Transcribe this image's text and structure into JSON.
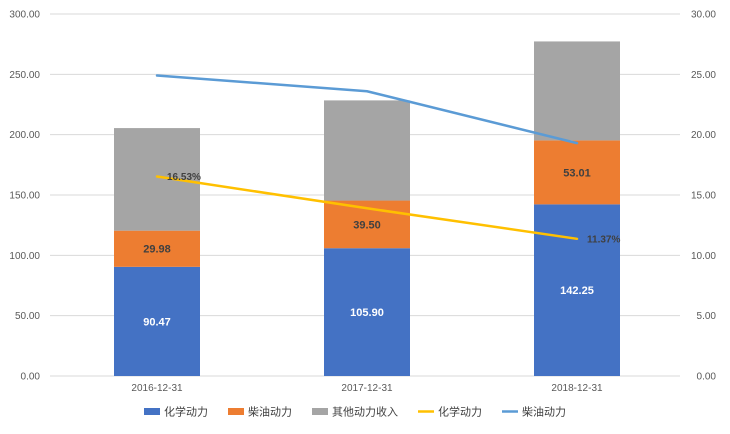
{
  "chart_data": {
    "type": "bar",
    "stacked": true,
    "categories": [
      "2016-12-31",
      "2017-12-31",
      "2018-12-31"
    ],
    "series": [
      {
        "name": "化学动力",
        "chart": "bar",
        "axis": "left",
        "color": "#4472C4",
        "values": [
          90.47,
          105.9,
          142.25
        ],
        "labels": [
          "90.47",
          "105.90",
          "142.25"
        ],
        "label_color": "#ffffff"
      },
      {
        "name": "柴油动力",
        "chart": "bar",
        "axis": "left",
        "color": "#ED7D31",
        "values": [
          29.98,
          39.5,
          53.01
        ],
        "labels": [
          "29.98",
          "39.50",
          "53.01"
        ],
        "label_color": "#404040"
      },
      {
        "name": "其他动力收入",
        "chart": "bar",
        "axis": "left",
        "color": "#A5A5A5",
        "values": [
          85.0,
          83.0,
          82.0
        ],
        "labels": [
          "",
          "",
          ""
        ]
      },
      {
        "name": "化学动力",
        "chart": "line",
        "axis": "right",
        "color": "#FFC000",
        "values": [
          16.53,
          13.9,
          11.37
        ],
        "labels": [
          "16.53%",
          "",
          "11.37%"
        ]
      },
      {
        "name": "柴油动力",
        "chart": "line",
        "axis": "right",
        "color": "#5B9BD5",
        "values": [
          24.9,
          23.6,
          19.3
        ],
        "labels": [
          "",
          "",
          ""
        ]
      }
    ],
    "y_left": {
      "min": 0,
      "max": 300,
      "step": 50,
      "tick_labels": [
        "0.00",
        "50.00",
        "100.00",
        "150.00",
        "200.00",
        "250.00",
        "300.00"
      ]
    },
    "y_right": {
      "min": 0,
      "max": 30,
      "step": 5,
      "tick_labels": [
        "0.00",
        "5.00",
        "10.00",
        "15.00",
        "20.00",
        "25.00",
        "30.00"
      ]
    },
    "grid": true,
    "legend": "bottom",
    "legend_entries": [
      {
        "name": "化学动力",
        "kind": "bar",
        "color": "#4472C4"
      },
      {
        "name": "柴油动力",
        "kind": "bar",
        "color": "#ED7D31"
      },
      {
        "name": "其他动力收入",
        "kind": "bar",
        "color": "#A5A5A5"
      },
      {
        "name": "化学动力",
        "kind": "line",
        "color": "#FFC000"
      },
      {
        "name": "柴油动力",
        "kind": "line",
        "color": "#5B9BD5"
      }
    ],
    "gridline_color": "#D9D9D9"
  }
}
